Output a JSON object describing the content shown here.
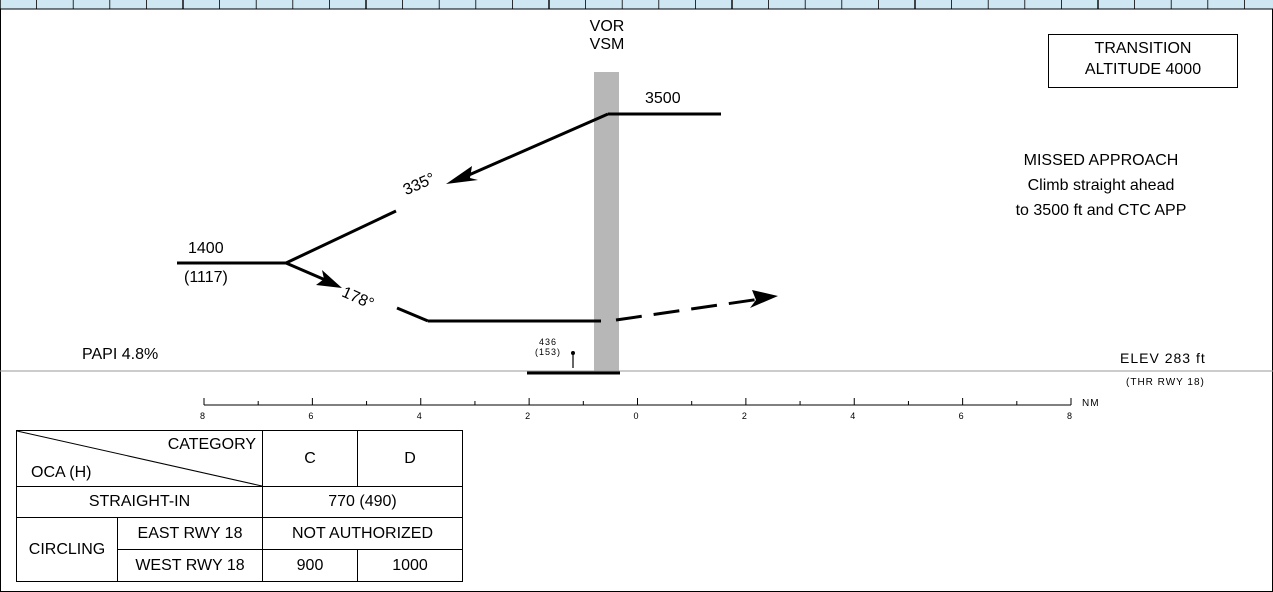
{
  "labels": {
    "vor_line1": "VOR",
    "vor_line2": "VSM",
    "transition_line1": "TRANSITION",
    "transition_line2": "ALTITUDE 4000",
    "alt_3500": "3500",
    "alt_1400": "1400",
    "height_1117": "(1117)",
    "course_335": "335°",
    "course_178": "178°",
    "missed_title": "MISSED APPROACH",
    "missed_line1": "Climb straight ahead",
    "missed_line2": "to 3500 ft and CTC APP",
    "papi": "PAPI 4.8%",
    "elev": "ELEV 283 ft",
    "thr": "(THR RWY 18)",
    "obstacle_alt": "436",
    "obstacle_height": "(153)"
  },
  "scale": {
    "unit": "NM",
    "ticks": [
      "8",
      "6",
      "4",
      "2",
      "0",
      "2",
      "4",
      "6",
      "8"
    ]
  },
  "minima": {
    "header_category": "CATEGORY",
    "header_oca": "OCA (H)",
    "col_c": "C",
    "col_d": "D",
    "straight_in_label": "STRAIGHT-IN",
    "straight_in_value": "770 (490)",
    "circling_label": "CIRCLING",
    "east_label": "EAST RWY 18",
    "east_value": "NOT  AUTHORIZED",
    "west_label": "WEST RWY 18",
    "west_c": "900",
    "west_d": "1000"
  }
}
